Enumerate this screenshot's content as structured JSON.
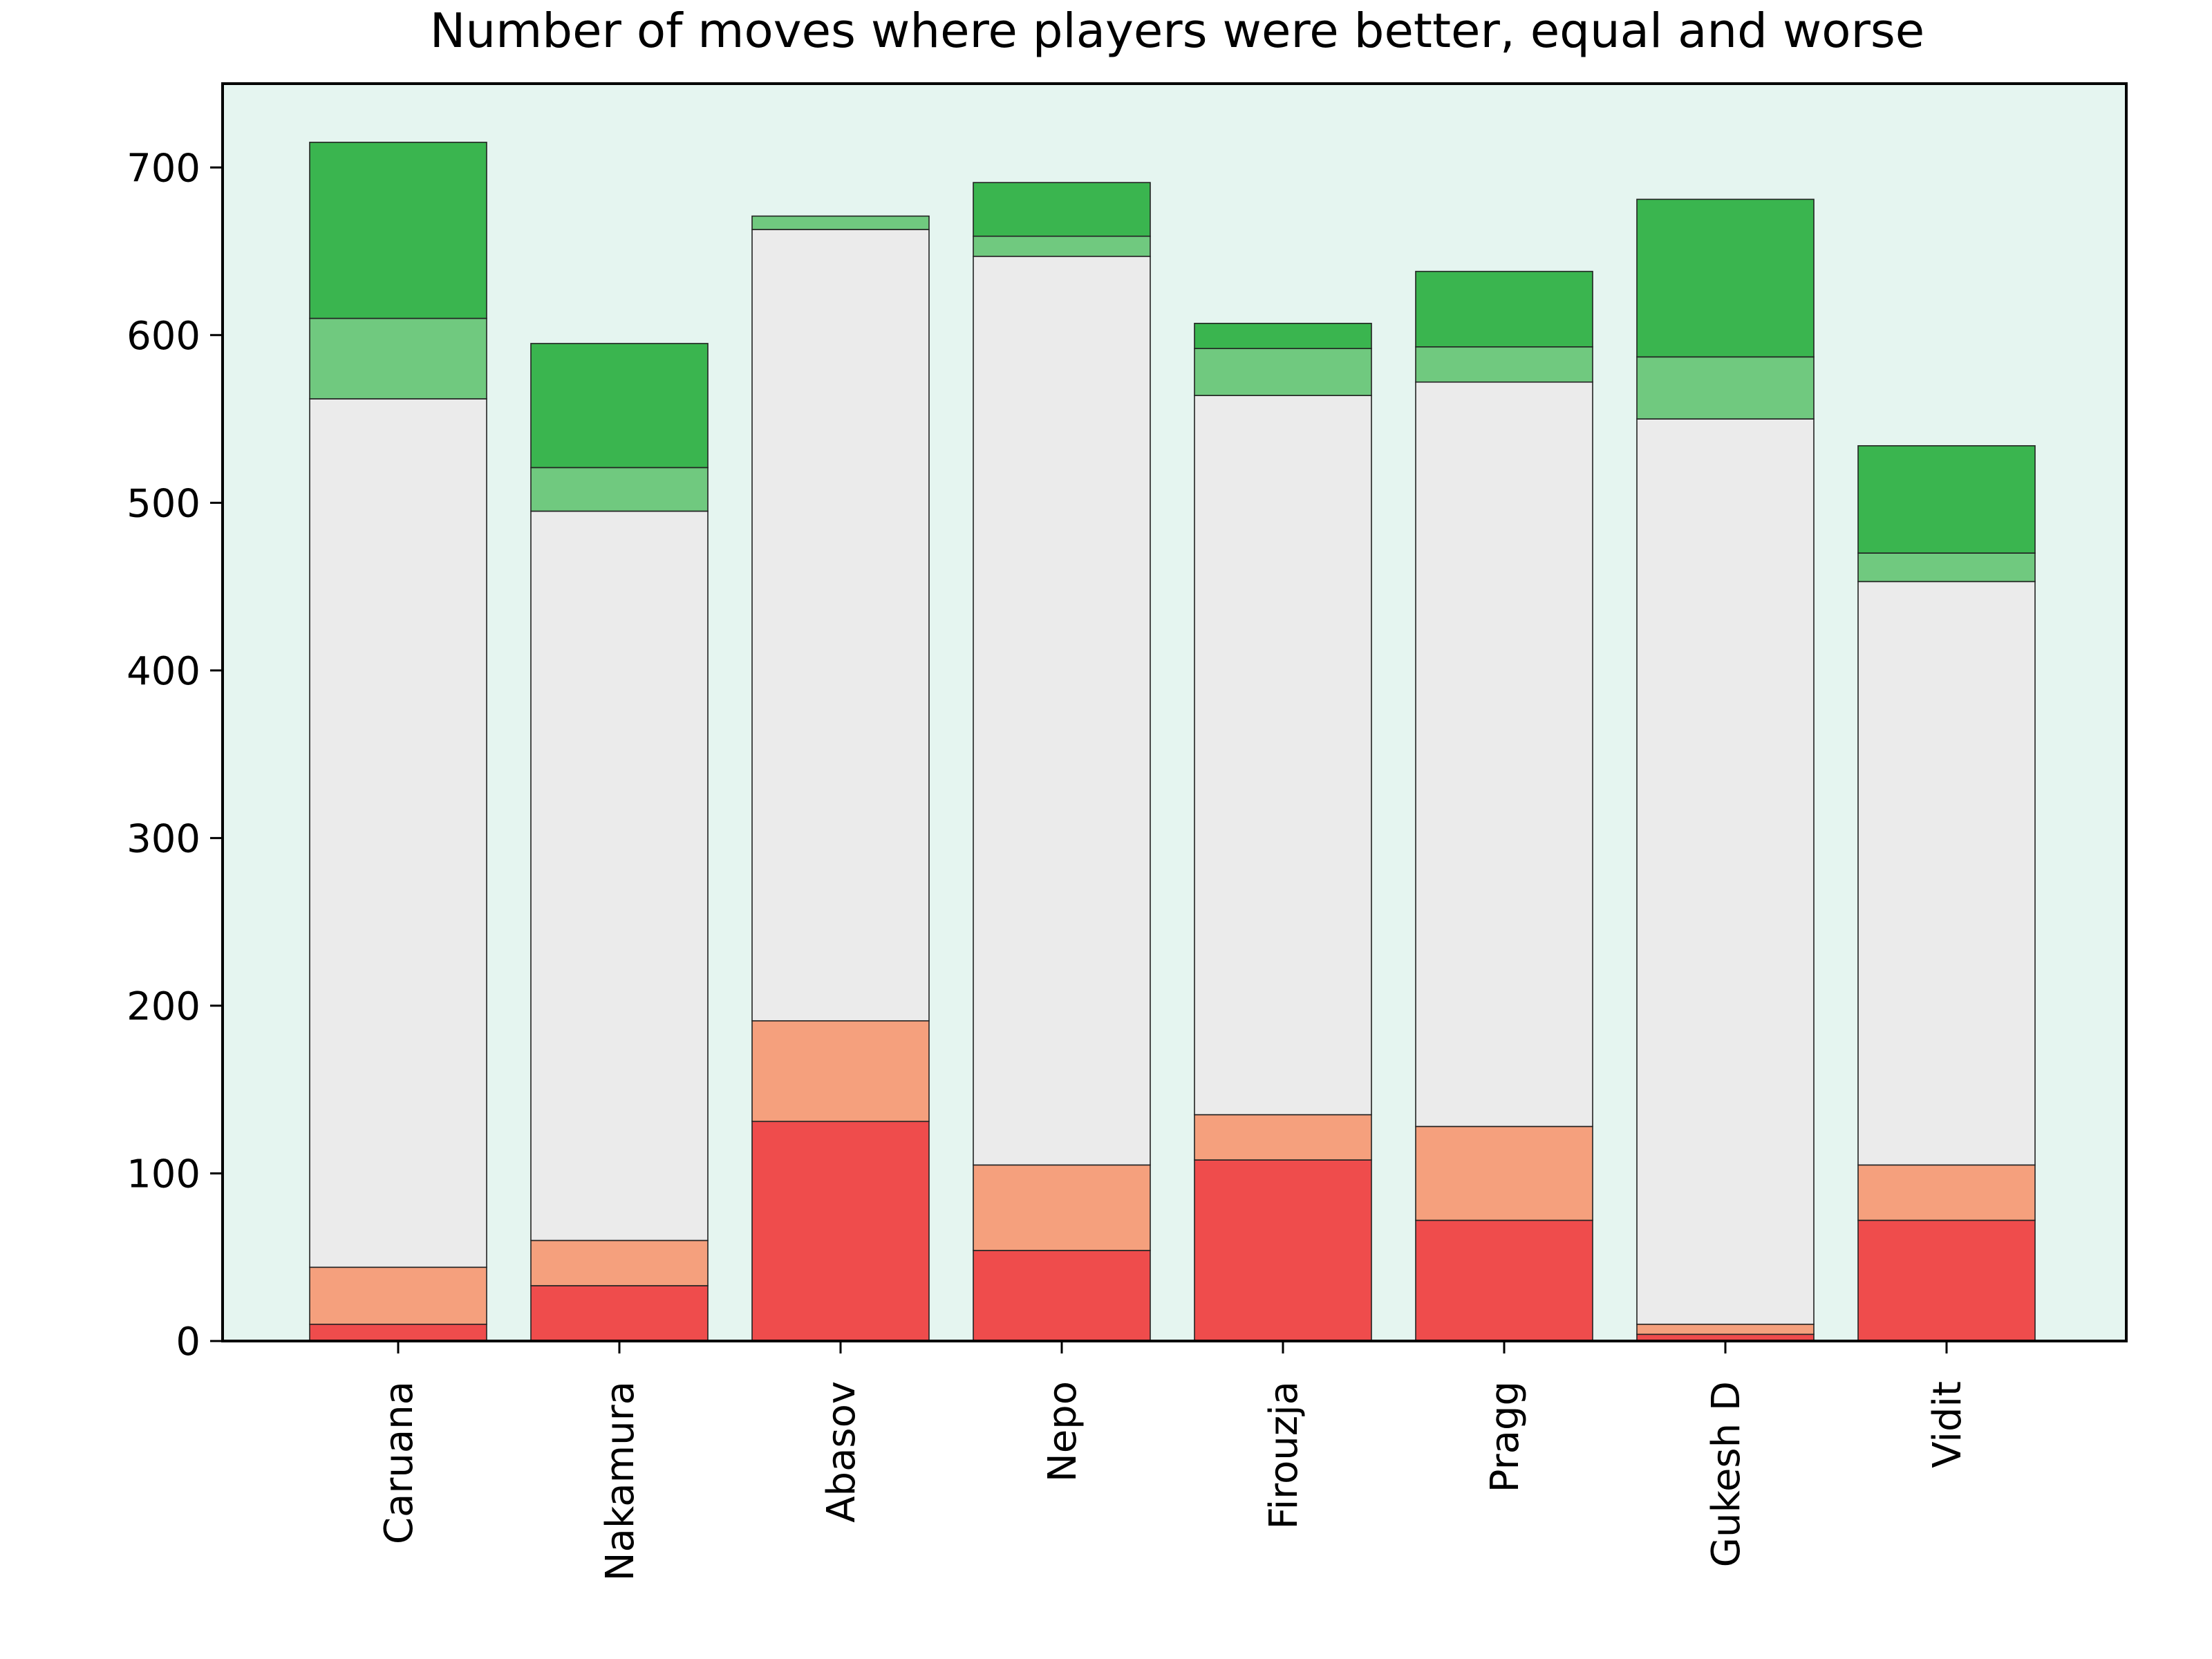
{
  "chart_data": {
    "type": "bar",
    "stacked": true,
    "title": "Number of moves where players were better, equal and worse",
    "xlabel": "",
    "ylabel": "",
    "ylim": [
      0,
      750
    ],
    "yticks": [
      0,
      100,
      200,
      300,
      400,
      500,
      600,
      700
    ],
    "grid": false,
    "legend": "none",
    "plot_background": "#e5f5f0",
    "bar_edge_color": "#222222",
    "categories": [
      "Caruana",
      "Nakamura",
      "Abasov",
      "Nepo",
      "Firouzja",
      "Pragg",
      "Gukesh D",
      "Vidit"
    ],
    "series": [
      {
        "color": "#ef4c4c",
        "values": [
          10,
          33,
          131,
          54,
          108,
          72,
          4,
          72
        ]
      },
      {
        "color": "#f5a07d",
        "values": [
          34,
          27,
          60,
          51,
          27,
          56,
          6,
          33
        ]
      },
      {
        "color": "#ebebeb",
        "values": [
          518,
          435,
          472,
          542,
          429,
          444,
          540,
          348
        ]
      },
      {
        "color": "#70c97f",
        "values": [
          48,
          26,
          8,
          12,
          28,
          21,
          37,
          17
        ]
      },
      {
        "color": "#3ab54f",
        "values": [
          105,
          74,
          0,
          32,
          15,
          45,
          94,
          64
        ]
      }
    ]
  }
}
